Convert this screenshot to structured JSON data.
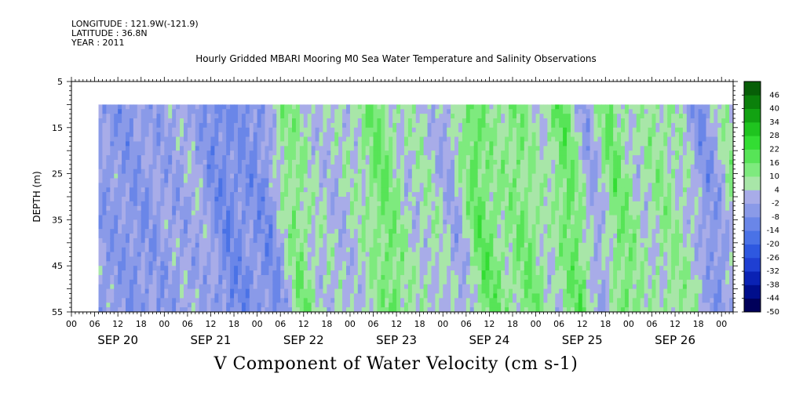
{
  "header": {
    "longitude": "LONGITUDE : 121.9W(-121.9)",
    "latitude": "LATITUDE : 36.8N",
    "year": "YEAR : 2011"
  },
  "title": "Hourly Gridded MBARI Mooring M0 Sea Water Temperature and Salinity Observations",
  "bottom_label": "V Component of Water Velocity (cm s-1)",
  "chart_data": {
    "type": "heatmap",
    "title": "Hourly Gridded MBARI Mooring M0 Sea Water Temperature and Salinity Observations",
    "ylabel": "DEPTH (m)",
    "xlabel": "V Component of Water Velocity (cm s-1)",
    "y_range": [
      5,
      55
    ],
    "y_inverted": true,
    "y_ticks": [
      5,
      15,
      25,
      35,
      45,
      55
    ],
    "x_range": [
      "SEP 20 00",
      "SEP 27 03"
    ],
    "x_hour_ticks": [
      "00",
      "06",
      "12",
      "18",
      "00",
      "06",
      "12",
      "18",
      "00",
      "06",
      "12",
      "18",
      "00",
      "06",
      "12",
      "18",
      "00",
      "06",
      "12",
      "18",
      "00",
      "06",
      "12",
      "18",
      "00",
      "06",
      "12",
      "18",
      "00"
    ],
    "x_day_labels": [
      "SEP 20",
      "SEP 21",
      "SEP 22",
      "SEP 23",
      "SEP 24",
      "SEP 25",
      "SEP 26"
    ],
    "data_depth_range": [
      10,
      55
    ],
    "data_time_start": "SEP 20 07",
    "colorbar": {
      "levels": [
        -50,
        -44,
        -38,
        -32,
        -26,
        -20,
        -14,
        -8,
        -2,
        4,
        10,
        16,
        22,
        28,
        34,
        40,
        46
      ],
      "tick_labels": [
        "46",
        "40",
        "34",
        "28",
        "22",
        "16",
        "10",
        "4",
        "-2",
        "-8",
        "-14",
        "-20",
        "-26",
        "-32",
        "-38",
        "-44",
        "-50"
      ]
    },
    "approx_velocity_profile": [
      {
        "time": "SEP 20 08",
        "v": -4
      },
      {
        "time": "SEP 20 12",
        "v": -6
      },
      {
        "time": "SEP 20 18",
        "v": -4
      },
      {
        "time": "SEP 21 00",
        "v": -2
      },
      {
        "time": "SEP 21 06",
        "v": 0
      },
      {
        "time": "SEP 21 12",
        "v": -10
      },
      {
        "time": "SEP 21 18",
        "v": -6
      },
      {
        "time": "SEP 22 00",
        "v": -8
      },
      {
        "time": "SEP 22 06",
        "v": 14
      },
      {
        "time": "SEP 22 12",
        "v": 4
      },
      {
        "time": "SEP 22 18",
        "v": 2
      },
      {
        "time": "SEP 23 00",
        "v": 6
      },
      {
        "time": "SEP 23 06",
        "v": 16
      },
      {
        "time": "SEP 23 12",
        "v": 4
      },
      {
        "time": "SEP 23 18",
        "v": 6
      },
      {
        "time": "SEP 24 00",
        "v": -2
      },
      {
        "time": "SEP 24 06",
        "v": 18
      },
      {
        "time": "SEP 24 12",
        "v": 8
      },
      {
        "time": "SEP 24 18",
        "v": 14
      },
      {
        "time": "SEP 25 00",
        "v": 4
      },
      {
        "time": "SEP 25 06",
        "v": 18
      },
      {
        "time": "SEP 25 12",
        "v": -4
      },
      {
        "time": "SEP 25 18",
        "v": 16
      },
      {
        "time": "SEP 26 00",
        "v": 4
      },
      {
        "time": "SEP 26 06",
        "v": 10
      },
      {
        "time": "SEP 26 12",
        "v": 6
      },
      {
        "time": "SEP 26 18",
        "v": -8
      },
      {
        "time": "SEP 27 00",
        "v": 8
      }
    ]
  }
}
